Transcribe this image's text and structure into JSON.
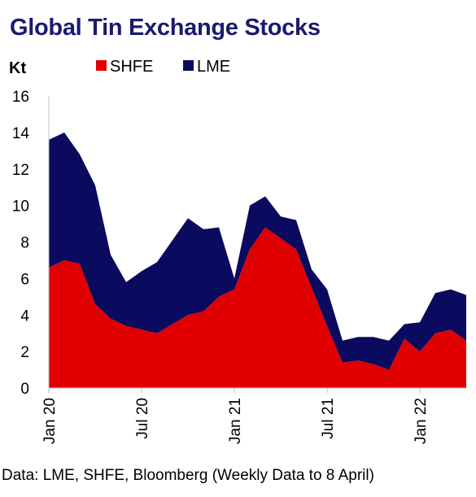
{
  "title": "Global Tin Exchange Stocks",
  "source": "Data: LME, SHFE, Bloomberg (Weekly Data to 8 April)",
  "chart_data": {
    "type": "area",
    "stacked": true,
    "ylabel": "Kt",
    "ylim": [
      0,
      16
    ],
    "yticks": [
      0,
      2,
      4,
      6,
      8,
      10,
      12,
      14,
      16
    ],
    "grid": false,
    "legend": "top",
    "xlim": [
      "2020-01",
      "2022-04"
    ],
    "xticks": [
      "Jan 20",
      "Jul 20",
      "Jan 21",
      "Jul 21",
      "Jan 22"
    ],
    "x": [
      "2020-01",
      "2020-02",
      "2020-03",
      "2020-04",
      "2020-05",
      "2020-06",
      "2020-07",
      "2020-08",
      "2020-09",
      "2020-10",
      "2020-11",
      "2020-12",
      "2021-01",
      "2021-02",
      "2021-03",
      "2021-04",
      "2021-05",
      "2021-06",
      "2021-07",
      "2021-08",
      "2021-09",
      "2021-10",
      "2021-11",
      "2021-12",
      "2022-01",
      "2022-02",
      "2022-03",
      "2022-04"
    ],
    "series": [
      {
        "name": "SHFE",
        "color": "#e00000",
        "values": [
          6.6,
          7.0,
          6.8,
          4.6,
          3.8,
          3.4,
          3.2,
          3.0,
          3.5,
          4.0,
          4.2,
          5.0,
          5.4,
          7.6,
          8.8,
          8.2,
          7.6,
          5.5,
          3.4,
          1.4,
          1.5,
          1.3,
          1.0,
          2.7,
          2.0,
          3.0,
          3.2,
          2.6
        ]
      },
      {
        "name": "LME",
        "color": "#0a0a5e",
        "values": [
          7.0,
          7.0,
          6.0,
          6.5,
          3.5,
          2.4,
          3.2,
          3.9,
          4.6,
          5.3,
          4.5,
          3.8,
          0.6,
          2.4,
          1.7,
          1.2,
          1.6,
          1.0,
          2.0,
          1.2,
          1.3,
          1.5,
          1.6,
          0.8,
          1.6,
          2.2,
          2.2,
          2.5
        ]
      }
    ]
  }
}
